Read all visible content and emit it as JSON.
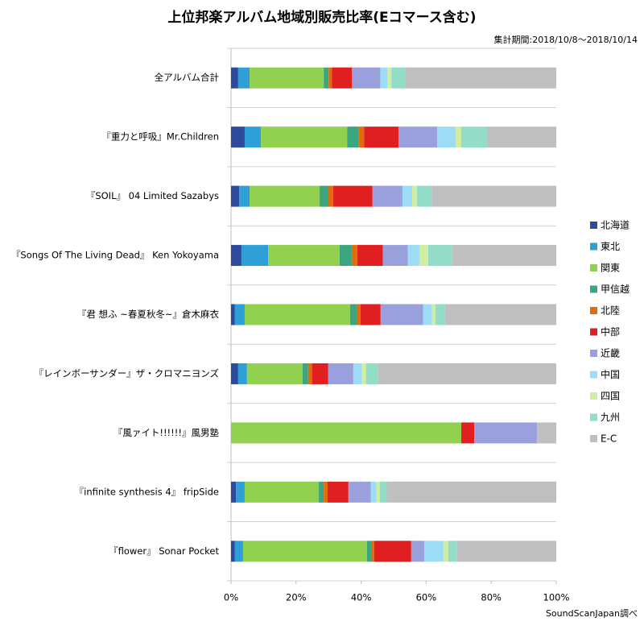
{
  "chart_data": {
    "type": "stacked_barh",
    "title": "上位邦楽アルバム地域別販売比率(Eコマース含む)",
    "subtitle": "集計期間:2018/10/8～2018/10/14",
    "source": "SoundScanJapan調べ",
    "categories": [
      "全アルバム合計",
      "『重力と呼吸』Mr.Children",
      "『SOIL』 04 Limited Sazabys",
      "『Songs Of The Living Dead』 Ken Yokoyama",
      "『君 想ふ ~春夏秋冬~』倉木麻衣",
      "『レインボーサンダー』ザ・クロマニヨンズ",
      "『風ァイト!!!!!!』風男塾",
      "『infinite synthesis 4』 fripSide",
      "『flower』 Sonar Pocket"
    ],
    "series": [
      {
        "name": "北海道",
        "color": "#2e4a9b",
        "values": [
          2.2,
          4.2,
          2.5,
          3.2,
          1.2,
          2.2,
          0,
          1.5,
          1.2
        ]
      },
      {
        "name": "東北",
        "color": "#2f9fd7",
        "values": [
          3.5,
          5.0,
          3.2,
          8.2,
          3.0,
          2.7,
          0,
          2.7,
          2.5
        ]
      },
      {
        "name": "関東",
        "color": "#92d050",
        "values": [
          22.8,
          26.5,
          21.5,
          22.0,
          32.4,
          17.1,
          70.8,
          22.8,
          38.1
        ]
      },
      {
        "name": "甲信越",
        "color": "#3aa57e",
        "values": [
          1.5,
          3.5,
          2.5,
          3.7,
          2.0,
          1.7,
          0,
          1.5,
          1.5
        ]
      },
      {
        "name": "北陸",
        "color": "#e36c0a",
        "values": [
          1.0,
          1.7,
          1.7,
          1.7,
          1.2,
          1.2,
          0,
          1.2,
          0.7
        ]
      },
      {
        "name": "中部",
        "color": "#e02020",
        "values": [
          6.2,
          10.6,
          12.1,
          7.9,
          6.2,
          5.0,
          4.0,
          6.4,
          11.4
        ]
      },
      {
        "name": "近畿",
        "color": "#9aa0dc",
        "values": [
          8.7,
          11.9,
          9.2,
          7.7,
          13.1,
          7.7,
          19.3,
          6.9,
          4.0
        ]
      },
      {
        "name": "中国",
        "color": "#9ddcf5",
        "values": [
          2.2,
          5.7,
          3.0,
          3.5,
          2.7,
          2.7,
          0,
          1.7,
          5.9
        ]
      },
      {
        "name": "四国",
        "color": "#d2eca0",
        "values": [
          1.2,
          1.7,
          1.5,
          2.7,
          1.0,
          1.2,
          0,
          1.0,
          1.5
        ]
      },
      {
        "name": "九州",
        "color": "#93dcc8",
        "values": [
          4.2,
          7.9,
          4.5,
          7.4,
          3.0,
          3.7,
          0,
          2.2,
          2.7
        ]
      },
      {
        "name": "E-C",
        "color": "#bfbfbf",
        "values": [
          46.5,
          21.3,
          38.3,
          32.0,
          34.2,
          54.8,
          5.9,
          52.1,
          30.5
        ]
      }
    ],
    "xlim": [
      0,
      100
    ],
    "xticks": [
      {
        "value": 0,
        "label": "0%"
      },
      {
        "value": 20,
        "label": "20%"
      },
      {
        "value": 40,
        "label": "40%"
      },
      {
        "value": 60,
        "label": "60%"
      },
      {
        "value": 80,
        "label": "80%"
      },
      {
        "value": 100,
        "label": "100%"
      }
    ],
    "grid": false,
    "legend": "right"
  }
}
